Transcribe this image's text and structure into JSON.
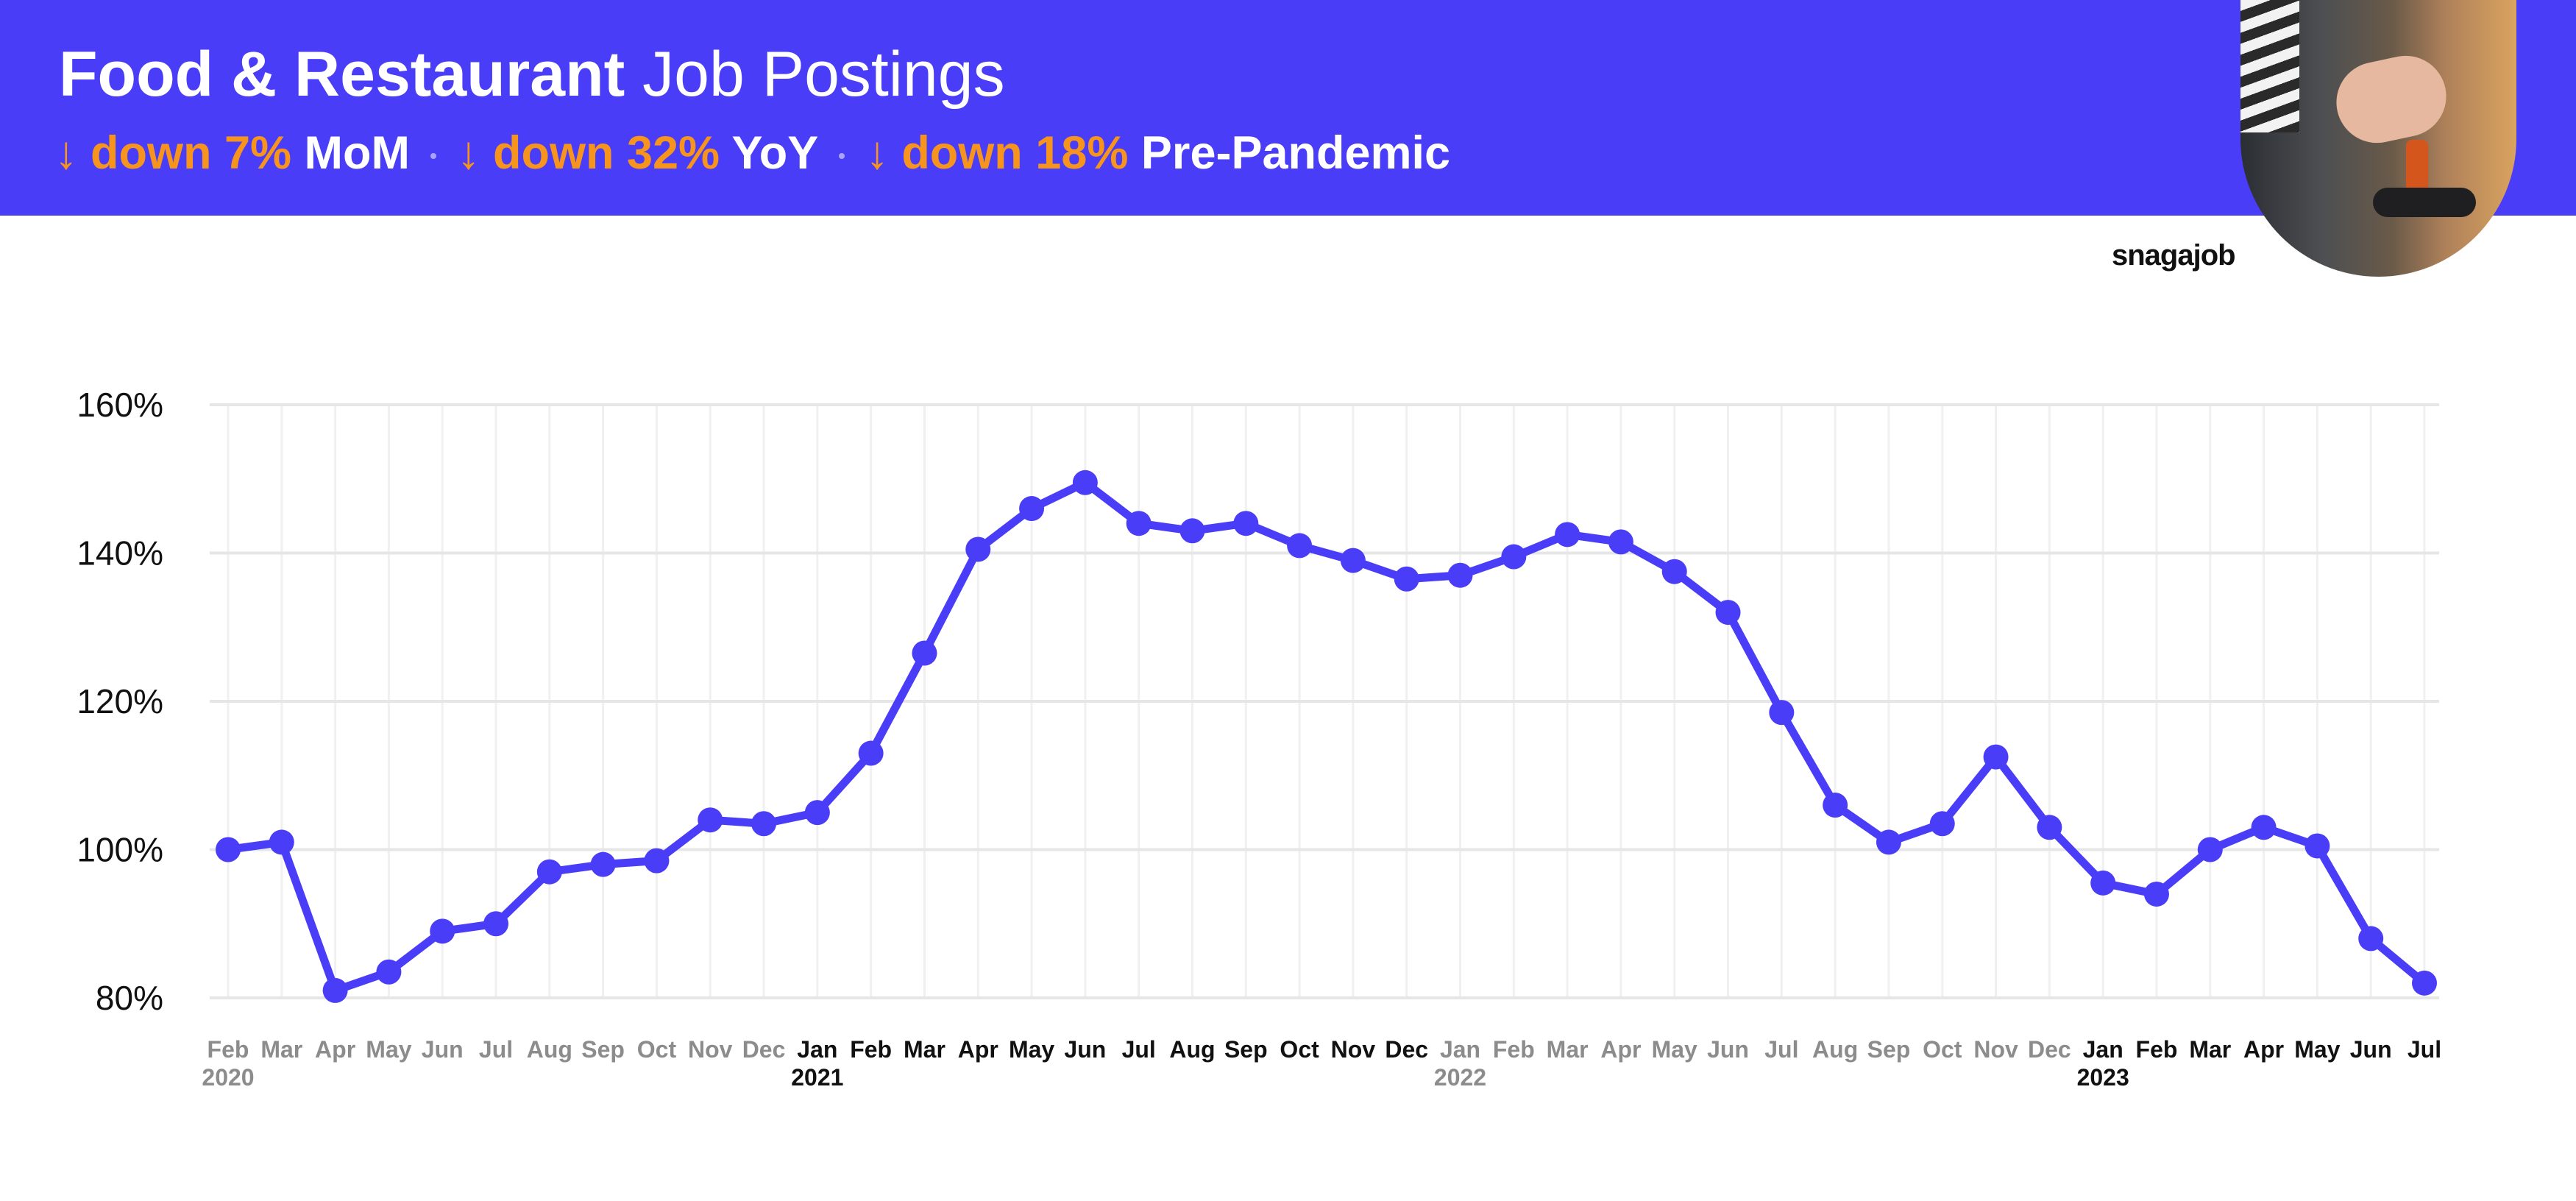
{
  "header": {
    "title_bold": "Food & Restaurant",
    "title_light": "Job Postings",
    "stats": [
      {
        "arrow": "↓",
        "change": "down 7%",
        "label": "MoM"
      },
      {
        "arrow": "↓",
        "change": "down 32%",
        "label": "YoY"
      },
      {
        "arrow": "↓",
        "change": "down 18%",
        "label": "Pre-Pandemic"
      }
    ]
  },
  "brand": "snagajob",
  "colors": {
    "banner": "#4a3df7",
    "accent_orange": "#f7941d",
    "series": "#4a3df7",
    "grid": "#e6e6e6",
    "tick_muted": "#8c8c8c",
    "tick_dark": "#111111"
  },
  "chart_data": {
    "type": "line",
    "ylim": [
      80,
      160
    ],
    "yticks": [
      80,
      100,
      120,
      140,
      160
    ],
    "ytick_labels": [
      "80%",
      "100%",
      "120%",
      "140%",
      "160%"
    ],
    "grid": true,
    "x": [
      "Feb",
      "Mar",
      "Apr",
      "May",
      "Jun",
      "Jul",
      "Aug",
      "Sep",
      "Oct",
      "Nov",
      "Dec",
      "Jan",
      "Feb",
      "Mar",
      "Apr",
      "May",
      "Jun",
      "Jul",
      "Aug",
      "Sep",
      "Oct",
      "Nov",
      "Dec",
      "Jan",
      "Feb",
      "Mar",
      "Apr",
      "May",
      "Jun",
      "Jul",
      "Aug",
      "Sep",
      "Oct",
      "Nov",
      "Dec",
      "Jan",
      "Feb",
      "Mar",
      "Apr",
      "May",
      "Jun",
      "Jul"
    ],
    "x_emphasis": [
      false,
      false,
      false,
      false,
      false,
      false,
      false,
      false,
      false,
      false,
      false,
      true,
      true,
      true,
      true,
      true,
      true,
      true,
      true,
      true,
      true,
      true,
      true,
      false,
      false,
      false,
      false,
      false,
      false,
      false,
      false,
      false,
      false,
      false,
      false,
      true,
      true,
      true,
      true,
      true,
      true,
      true
    ],
    "year_labels": [
      {
        "index": 0,
        "label": "2020",
        "emphasis": false
      },
      {
        "index": 11,
        "label": "2021",
        "emphasis": true
      },
      {
        "index": 23,
        "label": "2022",
        "emphasis": false
      },
      {
        "index": 35,
        "label": "2023",
        "emphasis": true
      }
    ],
    "series": [
      {
        "values": [
          100,
          101,
          81,
          83.5,
          89,
          90,
          97,
          98,
          98.5,
          104,
          103.5,
          105,
          113,
          126.5,
          140.5,
          146,
          149.5,
          144,
          143,
          144,
          141,
          139,
          136.5,
          137,
          139.5,
          142.5,
          141.5,
          137.5,
          132,
          118.5,
          106,
          101,
          103.5,
          112.5,
          103,
          95.5,
          94,
          100,
          103,
          100.5,
          88,
          82
        ]
      }
    ]
  }
}
